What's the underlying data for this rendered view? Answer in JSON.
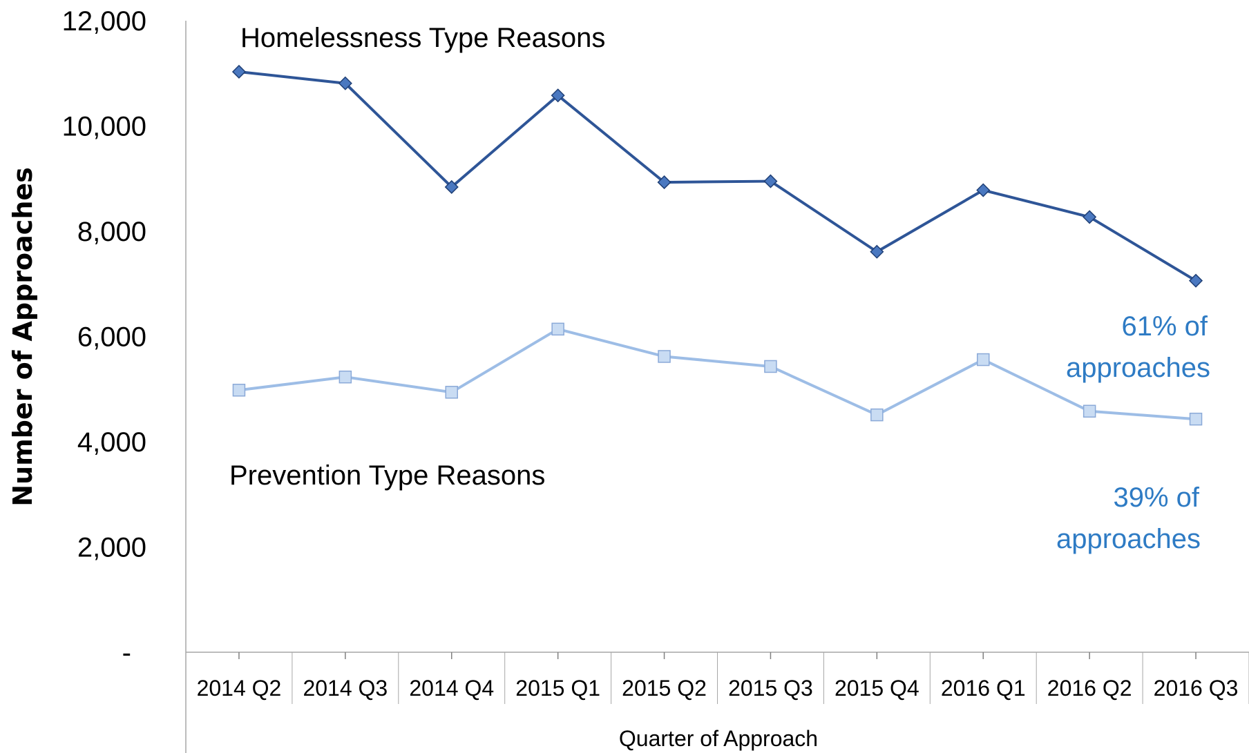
{
  "chart_data": {
    "type": "line",
    "categories": [
      "2014 Q2",
      "2014 Q3",
      "2014 Q4",
      "2015 Q1",
      "2015 Q2",
      "2015 Q3",
      "2015 Q4",
      "2016 Q1",
      "2016 Q2",
      "2016 Q3"
    ],
    "series": [
      {
        "name": "Homelessness Type Reasons",
        "values": [
          11030,
          10810,
          8840,
          10580,
          8930,
          8950,
          7610,
          8780,
          8270,
          7060
        ],
        "color": "#2e5597",
        "marker": "diamond"
      },
      {
        "name": "Prevention Type Reasons",
        "values": [
          4980,
          5230,
          4940,
          6140,
          5620,
          5430,
          4510,
          5560,
          4580,
          4430
        ],
        "color": "#9dbde6",
        "marker": "square"
      }
    ],
    "ylim": [
      0,
      12000
    ],
    "yticks": [
      {
        "value": 12000,
        "label": "12,000"
      },
      {
        "value": 10000,
        "label": "10,000"
      },
      {
        "value": 8000,
        "label": "8,000"
      },
      {
        "value": 6000,
        "label": "6,000"
      },
      {
        "value": 4000,
        "label": "4,000"
      },
      {
        "value": 2000,
        "label": "2,000"
      },
      {
        "value": 0,
        "label": "-"
      }
    ],
    "xlabel": "Quarter of Approach",
    "ylabel": "Number of Approaches",
    "annotations": [
      {
        "lines": [
          "61% of",
          "approaches"
        ],
        "color": "#2e7bc4"
      },
      {
        "lines": [
          "39% of",
          "approaches"
        ],
        "color": "#2e7bc4"
      }
    ],
    "grid": false,
    "legend": "none"
  }
}
